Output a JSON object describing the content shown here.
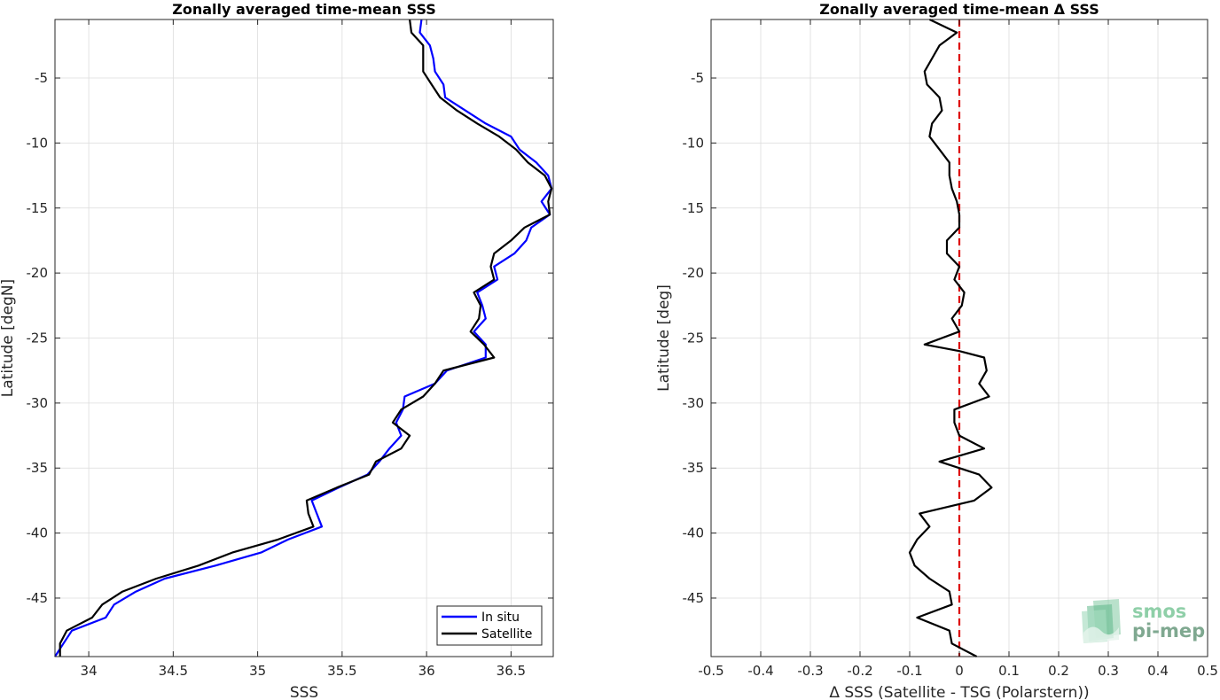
{
  "chart_data": [
    {
      "type": "line",
      "title": "Zonally averaged time-mean SSS",
      "xlabel": "SSS",
      "ylabel": "Latitude [degN]",
      "xlim": [
        33.8,
        36.75
      ],
      "ylim": [
        -49.5,
        -0.5
      ],
      "xticks": [
        34,
        34.5,
        35,
        35.5,
        36,
        36.5
      ],
      "xtick_labels": [
        "34",
        "34.5",
        "35",
        "35.5",
        "36",
        "36.5"
      ],
      "yticks": [
        -5,
        -10,
        -15,
        -20,
        -25,
        -30,
        -35,
        -40,
        -45
      ],
      "ytick_labels": [
        "-5",
        "-10",
        "-15",
        "-20",
        "-25",
        "-30",
        "-35",
        "-40",
        "-45"
      ],
      "grid": true,
      "legend_location": "bottom-right",
      "series": [
        {
          "name": "In situ",
          "color": "#0000ff",
          "points": [
            [
              35.97,
              -0.5
            ],
            [
              35.96,
              -1.5
            ],
            [
              36.02,
              -2.5
            ],
            [
              36.04,
              -3.5
            ],
            [
              36.05,
              -4.5
            ],
            [
              36.1,
              -5.5
            ],
            [
              36.11,
              -6.5
            ],
            [
              36.23,
              -7.5
            ],
            [
              36.35,
              -8.5
            ],
            [
              36.5,
              -9.5
            ],
            [
              36.55,
              -10.5
            ],
            [
              36.65,
              -11.5
            ],
            [
              36.72,
              -12.5
            ],
            [
              36.74,
              -13.5
            ],
            [
              36.68,
              -14.5
            ],
            [
              36.73,
              -15.5
            ],
            [
              36.62,
              -16.5
            ],
            [
              36.59,
              -17.5
            ],
            [
              36.52,
              -18.5
            ],
            [
              36.4,
              -19.5
            ],
            [
              36.42,
              -20.5
            ],
            [
              36.3,
              -21.5
            ],
            [
              36.33,
              -22.5
            ],
            [
              36.35,
              -23.5
            ],
            [
              36.28,
              -24.5
            ],
            [
              36.35,
              -25.5
            ],
            [
              36.35,
              -26.5
            ],
            [
              36.12,
              -27.5
            ],
            [
              36.05,
              -28.5
            ],
            [
              35.87,
              -29.5
            ],
            [
              35.86,
              -30.5
            ],
            [
              35.82,
              -31.5
            ],
            [
              35.85,
              -32.5
            ],
            [
              35.78,
              -33.5
            ],
            [
              35.72,
              -34.5
            ],
            [
              35.65,
              -35.5
            ],
            [
              35.48,
              -36.5
            ],
            [
              35.32,
              -37.5
            ],
            [
              35.35,
              -38.5
            ],
            [
              35.38,
              -39.5
            ],
            [
              35.18,
              -40.5
            ],
            [
              35.02,
              -41.5
            ],
            [
              34.75,
              -42.5
            ],
            [
              34.45,
              -43.5
            ],
            [
              34.28,
              -44.5
            ],
            [
              34.15,
              -45.5
            ],
            [
              34.1,
              -46.5
            ],
            [
              33.9,
              -47.5
            ],
            [
              33.85,
              -48.5
            ],
            [
              33.8,
              -49.5
            ]
          ]
        },
        {
          "name": "Satellite",
          "color": "#000000",
          "points": [
            [
              35.9,
              -0.5
            ],
            [
              35.91,
              -1.5
            ],
            [
              35.98,
              -2.5
            ],
            [
              35.98,
              -3.5
            ],
            [
              35.98,
              -4.5
            ],
            [
              36.03,
              -5.5
            ],
            [
              36.08,
              -6.5
            ],
            [
              36.18,
              -7.5
            ],
            [
              36.3,
              -8.5
            ],
            [
              36.43,
              -9.5
            ],
            [
              36.53,
              -10.5
            ],
            [
              36.6,
              -11.5
            ],
            [
              36.7,
              -12.5
            ],
            [
              36.74,
              -13.5
            ],
            [
              36.72,
              -14.5
            ],
            [
              36.73,
              -15.5
            ],
            [
              36.58,
              -16.5
            ],
            [
              36.5,
              -17.5
            ],
            [
              36.4,
              -18.5
            ],
            [
              36.38,
              -19.5
            ],
            [
              36.4,
              -20.5
            ],
            [
              36.28,
              -21.5
            ],
            [
              36.32,
              -22.5
            ],
            [
              36.31,
              -23.5
            ],
            [
              36.26,
              -24.5
            ],
            [
              36.34,
              -25.5
            ],
            [
              36.4,
              -26.5
            ],
            [
              36.1,
              -27.5
            ],
            [
              36.05,
              -28.5
            ],
            [
              35.98,
              -29.5
            ],
            [
              35.85,
              -30.5
            ],
            [
              35.8,
              -31.5
            ],
            [
              35.9,
              -32.5
            ],
            [
              35.85,
              -33.5
            ],
            [
              35.7,
              -34.5
            ],
            [
              35.66,
              -35.5
            ],
            [
              35.47,
              -36.5
            ],
            [
              35.29,
              -37.5
            ],
            [
              35.3,
              -38.5
            ],
            [
              35.33,
              -39.5
            ],
            [
              35.12,
              -40.5
            ],
            [
              34.85,
              -41.5
            ],
            [
              34.65,
              -42.5
            ],
            [
              34.4,
              -43.5
            ],
            [
              34.2,
              -44.5
            ],
            [
              34.08,
              -45.5
            ],
            [
              34.02,
              -46.5
            ],
            [
              33.87,
              -47.5
            ],
            [
              33.83,
              -48.5
            ],
            [
              33.83,
              -49.5
            ]
          ]
        }
      ]
    },
    {
      "type": "line",
      "title": "Zonally averaged time-mean Δ SSS",
      "xlabel": "Δ SSS (Satellite - TSG (Polarstern))",
      "ylabel": "Latitude [deg]",
      "xlim": [
        -0.5,
        0.5
      ],
      "ylim": [
        -49.5,
        -0.5
      ],
      "xticks": [
        -0.5,
        -0.4,
        -0.3,
        -0.2,
        -0.1,
        0,
        0.1,
        0.2,
        0.3,
        0.4,
        0.5
      ],
      "xtick_labels": [
        "-0.5",
        "-0.4",
        "-0.3",
        "-0.2",
        "-0.1",
        "0",
        "0.1",
        "0.2",
        "0.3",
        "0.4",
        "0.5"
      ],
      "yticks": [
        -5,
        -10,
        -15,
        -20,
        -25,
        -30,
        -35,
        -40,
        -45
      ],
      "ytick_labels": [
        "-5",
        "-10",
        "-15",
        "-20",
        "-25",
        "-30",
        "-35",
        "-40",
        "-45"
      ],
      "grid": true,
      "reference_line": {
        "x": 0,
        "color": "#dd0000",
        "style": "dashed"
      },
      "series": [
        {
          "color": "#000000",
          "points": [
            [
              -0.06,
              -0.5
            ],
            [
              -0.005,
              -1.5
            ],
            [
              -0.04,
              -2.5
            ],
            [
              -0.055,
              -3.5
            ],
            [
              -0.07,
              -4.5
            ],
            [
              -0.065,
              -5.5
            ],
            [
              -0.04,
              -6.5
            ],
            [
              -0.035,
              -7.5
            ],
            [
              -0.055,
              -8.5
            ],
            [
              -0.06,
              -9.5
            ],
            [
              -0.04,
              -10.5
            ],
            [
              -0.02,
              -11.5
            ],
            [
              -0.02,
              -12.5
            ],
            [
              -0.015,
              -13.5
            ],
            [
              -0.005,
              -14.5
            ],
            [
              0,
              -15.5
            ],
            [
              0,
              -16.5
            ],
            [
              -0.025,
              -17.5
            ],
            [
              -0.025,
              -18.5
            ],
            [
              0.0,
              -19.5
            ],
            [
              -0.01,
              -20.5
            ],
            [
              0.01,
              -21.5
            ],
            [
              0.005,
              -22.5
            ],
            [
              -0.015,
              -23.5
            ],
            [
              0.0,
              -24.5
            ],
            [
              -0.07,
              -25.5
            ],
            [
              0.0,
              -26.0
            ],
            [
              0.05,
              -26.5
            ],
            [
              0.055,
              -27.5
            ],
            [
              0.04,
              -28.5
            ],
            [
              0.06,
              -29.5
            ],
            [
              -0.01,
              -30.5
            ],
            [
              -0.01,
              -31.5
            ],
            [
              0.0,
              -32.5
            ],
            [
              0.05,
              -33.5
            ],
            [
              -0.04,
              -34.5
            ],
            [
              0.04,
              -35.5
            ],
            [
              0.065,
              -36.5
            ],
            [
              0.03,
              -37.5
            ],
            [
              -0.08,
              -38.5
            ],
            [
              -0.06,
              -39.5
            ],
            [
              -0.085,
              -40.5
            ],
            [
              -0.1,
              -41.5
            ],
            [
              -0.09,
              -42.5
            ],
            [
              -0.06,
              -43.5
            ],
            [
              -0.02,
              -44.5
            ],
            [
              -0.015,
              -45.5
            ],
            [
              -0.085,
              -46.5
            ],
            [
              -0.02,
              -47.5
            ],
            [
              -0.015,
              -48.5
            ],
            [
              0.035,
              -49.5
            ]
          ]
        }
      ]
    }
  ],
  "legend": {
    "entries": [
      "In situ",
      "Satellite"
    ]
  },
  "logo": {
    "line1": "smos",
    "line2": "pi-mep"
  }
}
